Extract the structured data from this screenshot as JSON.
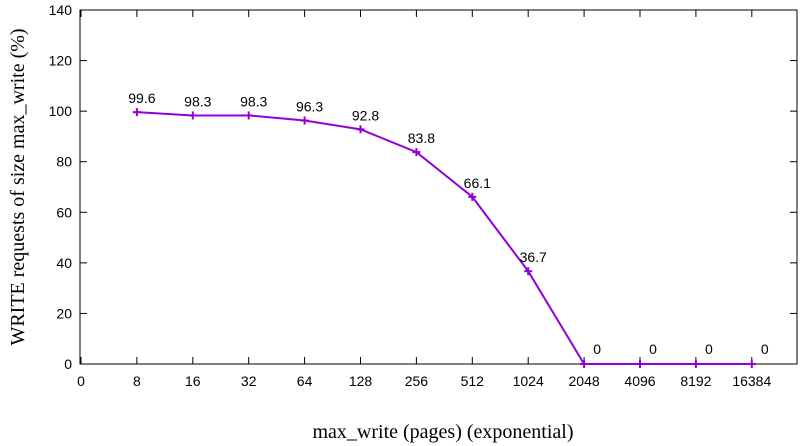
{
  "chart_data": {
    "type": "line",
    "xlabel": "max_write (pages) (exponential)",
    "ylabel": "WRITE requests of size max_write (%)",
    "x_tick_labels": [
      "0",
      "8",
      "16",
      "32",
      "64",
      "128",
      "256",
      "512",
      "1024",
      "2048",
      "4096",
      "8192",
      "16384"
    ],
    "ylim": [
      0,
      140
    ],
    "y_ticks": [
      0,
      20,
      40,
      60,
      80,
      100,
      120,
      140
    ],
    "categories": [
      "8",
      "16",
      "32",
      "64",
      "128",
      "256",
      "512",
      "1024",
      "2048",
      "4096",
      "8192",
      "16384"
    ],
    "series": [
      {
        "values": [
          99.6,
          98.3,
          98.3,
          96.3,
          92.8,
          83.8,
          66.1,
          36.7,
          0,
          0,
          0,
          0
        ],
        "labels": [
          "99.6",
          "98.3",
          "98.3",
          "96.3",
          "92.8",
          "83.8",
          "66.1",
          "36.7",
          "0",
          "0",
          "0",
          "0"
        ],
        "color": "#9400d3"
      }
    ],
    "grid": false,
    "legend": "none"
  }
}
